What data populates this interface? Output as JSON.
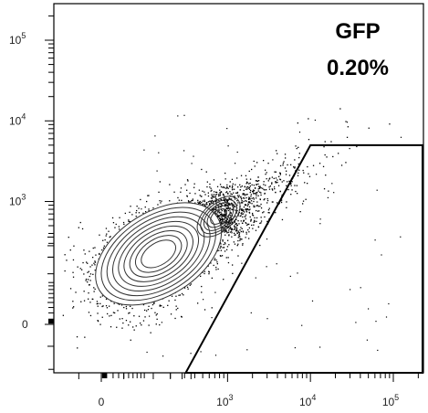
{
  "chart_data": {
    "type": "scatter",
    "title": "",
    "xlabel": "",
    "ylabel": "",
    "x_scale": "biexponential",
    "y_scale": "biexponential",
    "grid": false,
    "legend": "none",
    "x_ticks": [
      {
        "value": 0,
        "base": "0",
        "exp": ""
      },
      {
        "value": 1000,
        "base": "10",
        "exp": "3"
      },
      {
        "value": 10000,
        "base": "10",
        "exp": "4"
      },
      {
        "value": 100000,
        "base": "10",
        "exp": "5"
      }
    ],
    "y_ticks": [
      {
        "value": 0,
        "base": "0",
        "exp": ""
      },
      {
        "value": 1000,
        "base": "10",
        "exp": "3"
      },
      {
        "value": 10000,
        "base": "10",
        "exp": "4"
      },
      {
        "value": 100000,
        "base": "10",
        "exp": "5"
      }
    ],
    "gate": {
      "name": "GFP",
      "percent": "0.20%",
      "polygon": [
        [
          310,
          -400
        ],
        [
          10000,
          5000
        ],
        [
          230000,
          5000
        ],
        [
          230000,
          -400
        ]
      ]
    },
    "population": {
      "main_center": [
        120,
        200
      ],
      "secondary_center": [
        780,
        650
      ],
      "point_color": "#000000",
      "contour_color": "#333333",
      "contour_levels": 9
    }
  }
}
